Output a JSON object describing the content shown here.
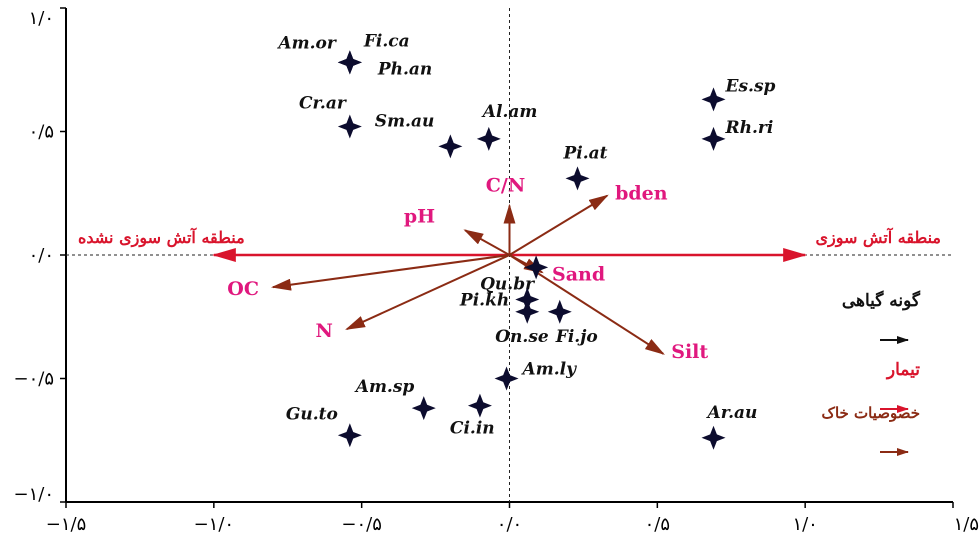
{
  "chart_data": {
    "type": "scatter",
    "title": "",
    "xlabel": "",
    "ylabel": "",
    "xlim": [
      -1.5,
      1.5
    ],
    "ylim": [
      -1.0,
      1.0
    ],
    "x_ticks": [
      {
        "value": -1.5,
        "label": "−۱/۵"
      },
      {
        "value": -1.0,
        "label": "−۱/۰"
      },
      {
        "value": -0.5,
        "label": "−۰/۵"
      },
      {
        "value": 0.0,
        "label": "۰/۰"
      },
      {
        "value": 0.5,
        "label": "۰/۵"
      },
      {
        "value": 1.0,
        "label": "۱/۰"
      },
      {
        "value": 1.5,
        "label": "۱/۵"
      }
    ],
    "y_ticks": [
      {
        "value": 1.0,
        "label": "۱/۰"
      },
      {
        "value": 0.5,
        "label": "۰/۵"
      },
      {
        "value": 0.0,
        "label": "۰/۰"
      },
      {
        "value": -0.5,
        "label": "−۰/۵"
      },
      {
        "value": -1.0,
        "label": "−۱/۰"
      }
    ],
    "species": [
      {
        "name": "Am.or",
        "x": -0.54,
        "y": 0.78
      },
      {
        "name": "Fi.ca",
        "x": -0.54,
        "y": 0.78
      },
      {
        "name": "Ph.an",
        "x": -0.54,
        "y": 0.78
      },
      {
        "name": "Cr.ar",
        "x": -0.54,
        "y": 0.52
      },
      {
        "name": "Sm.au",
        "x": -0.2,
        "y": 0.44
      },
      {
        "name": "Al.am",
        "x": -0.07,
        "y": 0.47
      },
      {
        "name": "Es.sp",
        "x": 0.69,
        "y": 0.63
      },
      {
        "name": "Rh.ri",
        "x": 0.69,
        "y": 0.47
      },
      {
        "name": "Pi.at",
        "x": 0.23,
        "y": 0.31
      },
      {
        "name": "Qu.br",
        "x": 0.09,
        "y": -0.05
      },
      {
        "name": "Pi.kh",
        "x": 0.06,
        "y": -0.18
      },
      {
        "name": "On.se",
        "x": 0.06,
        "y": -0.23
      },
      {
        "name": "Fi.jo",
        "x": 0.17,
        "y": -0.23
      },
      {
        "name": "Am.ly",
        "x": -0.01,
        "y": -0.5
      },
      {
        "name": "Am.sp",
        "x": -0.29,
        "y": -0.62
      },
      {
        "name": "Ci.in",
        "x": -0.1,
        "y": -0.61
      },
      {
        "name": "Gu.to",
        "x": -0.54,
        "y": -0.73
      },
      {
        "name": "Ar.au",
        "x": 0.69,
        "y": -0.74
      }
    ],
    "soil_vectors": [
      {
        "name": "C/N",
        "x": 0.0,
        "y": 0.2
      },
      {
        "name": "bden",
        "x": 0.33,
        "y": 0.24
      },
      {
        "name": "pH",
        "x": -0.15,
        "y": 0.1
      },
      {
        "name": "Sand",
        "x": 0.11,
        "y": -0.07
      },
      {
        "name": "OC",
        "x": -0.8,
        "y": -0.13
      },
      {
        "name": "N",
        "x": -0.55,
        "y": -0.3
      },
      {
        "name": "Silt",
        "x": 0.52,
        "y": -0.4
      }
    ],
    "treatments": [
      {
        "name": "منطقه آتش سوزی",
        "x": 1.0,
        "y": 0.0
      },
      {
        "name": "منطقه آتش سوزی نشده",
        "x": -1.0,
        "y": 0.0
      }
    ],
    "legend": {
      "placement": "right",
      "items": [
        {
          "label": "گونه گیاهی",
          "color": "#111111"
        },
        {
          "label": "تیمار",
          "color": "#d9142c"
        },
        {
          "label": "خصوصیات خاک",
          "color": "#8b2b14"
        }
      ]
    },
    "colors": {
      "species_marker": "#0c0c2e",
      "species_label": "#111111",
      "treatment": "#d9142c",
      "soil_arrow": "#8b2b14",
      "soil_label": "#e0187e",
      "origin_lines": "#222222"
    },
    "reference_lines": {
      "x": 0,
      "y": 0,
      "style": "dashed"
    }
  }
}
